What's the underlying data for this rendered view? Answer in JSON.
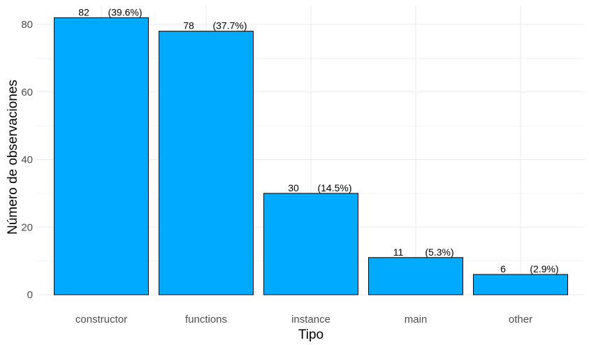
{
  "chart_data": {
    "type": "bar",
    "categories": [
      "constructor",
      "functions",
      "instance",
      "main",
      "other"
    ],
    "values": [
      82,
      78,
      30,
      11,
      6
    ],
    "percent_labels": [
      "(39.6%)",
      "(37.7%)",
      "(14.5%)",
      "(5.3%)",
      "(2.9%)"
    ],
    "title": "",
    "xlabel": "Tipo",
    "ylabel": "Número de observaciones",
    "ylim": [
      0,
      87
    ],
    "yticks": [
      0,
      20,
      40,
      60,
      80
    ],
    "grid": true,
    "bar_color": "#00AAFF",
    "bar_edge_color": "#000000",
    "grid_color": "#EBEBEB"
  }
}
